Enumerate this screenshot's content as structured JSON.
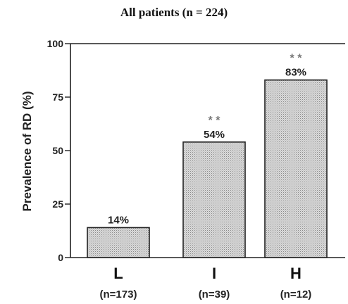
{
  "chart_data": {
    "type": "bar",
    "title": "All patients (n = 224)",
    "ylabel": "Prevalence of RD (%)",
    "xlabel": "",
    "ylim": [
      0,
      100
    ],
    "yticks": [
      "0",
      "25",
      "50",
      "75",
      "100"
    ],
    "categories": [
      "L",
      "I",
      "H"
    ],
    "category_n": [
      "(n=173)",
      "(n=39)",
      "(n=12)"
    ],
    "values": [
      14,
      54,
      83
    ],
    "value_labels": [
      "14%",
      "54%",
      "83%"
    ],
    "significance": [
      "",
      "* *",
      "* *"
    ],
    "bar_fill": "stippled gray",
    "grid": false
  }
}
